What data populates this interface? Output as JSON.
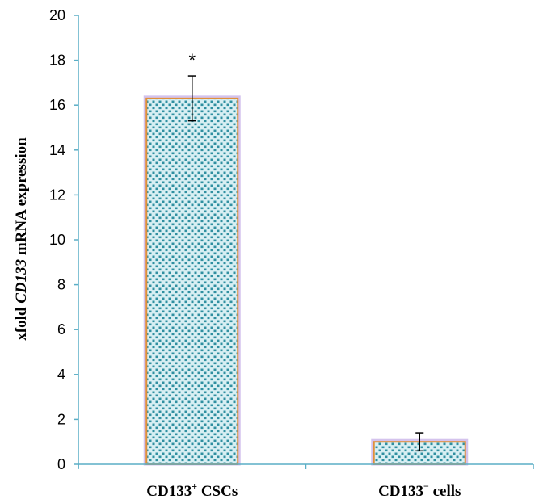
{
  "chart_data": {
    "type": "bar",
    "categories": [
      "CD133",
      "CD133"
    ],
    "category_superscripts": [
      "+",
      "−"
    ],
    "category_suffixes": [
      "CSCs",
      "cells"
    ],
    "values": [
      16.3,
      1.0
    ],
    "error": [
      1.0,
      0.4
    ],
    "annotations": [
      "*",
      ""
    ],
    "ylabel": {
      "prefix": "xfold ",
      "gene": "CD133",
      "suffix": " mRNA expression"
    },
    "ylim": [
      0,
      20
    ],
    "yticks": [
      "0",
      "2",
      "4",
      "6",
      "8",
      "10",
      "12",
      "14",
      "16",
      "18",
      "20"
    ],
    "ytick_values": [
      0,
      2,
      4,
      6,
      8,
      10,
      12,
      14,
      16,
      18,
      20
    ],
    "grid": false,
    "legend": "none",
    "colors": {
      "bar_fill": "#d8eff3",
      "bar_dots": "#2f8fa0",
      "bar_edge": "#e0903a",
      "bar_glow": "#c9b4e8",
      "axis": "#5aaec6",
      "text": "#000000"
    }
  }
}
